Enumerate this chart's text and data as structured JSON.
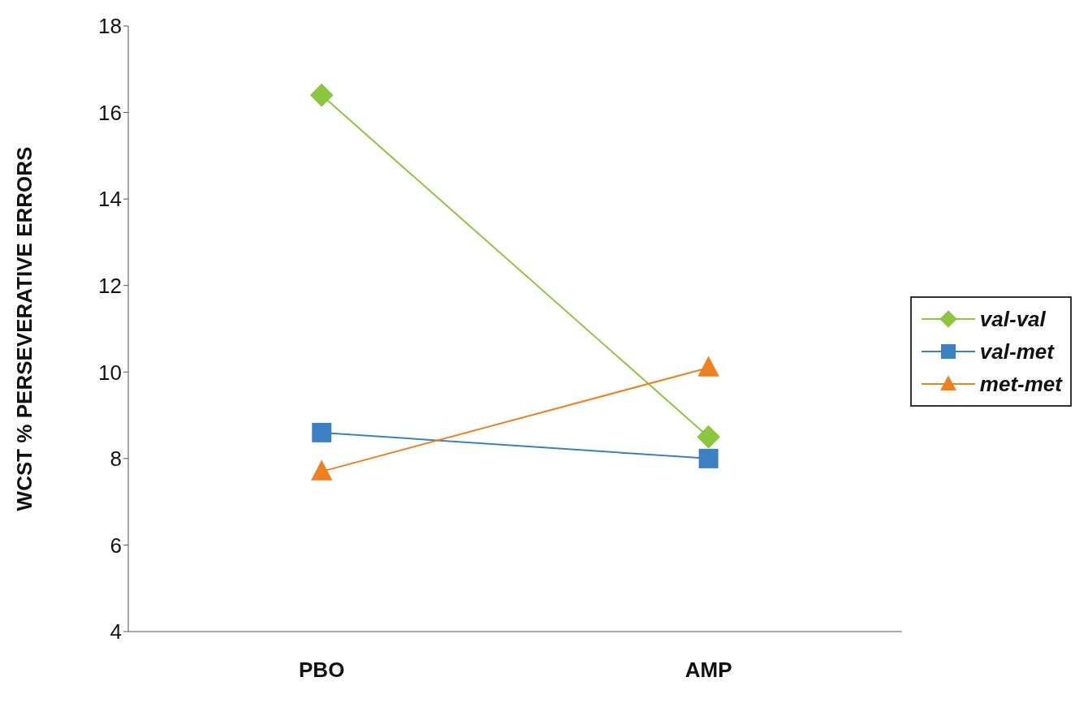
{
  "chart_data": {
    "type": "line",
    "ylabel": "WCST % PERSEVERATIVE ERRORS",
    "categories": [
      "PBO",
      "AMP"
    ],
    "series": [
      {
        "name": "val-val",
        "color": "#8cc63f",
        "marker": "diamond",
        "values": [
          16.4,
          8.5
        ]
      },
      {
        "name": "val-met",
        "color": "#3b7fc4",
        "marker": "square",
        "values": [
          8.6,
          8.0
        ]
      },
      {
        "name": "met-met",
        "color": "#f07f1e",
        "marker": "triangle",
        "values": [
          7.7,
          10.1
        ]
      }
    ],
    "ylim": [
      4,
      18
    ],
    "yticks": [
      4,
      6,
      8,
      10,
      12,
      14,
      16,
      18
    ],
    "legend": "right"
  }
}
